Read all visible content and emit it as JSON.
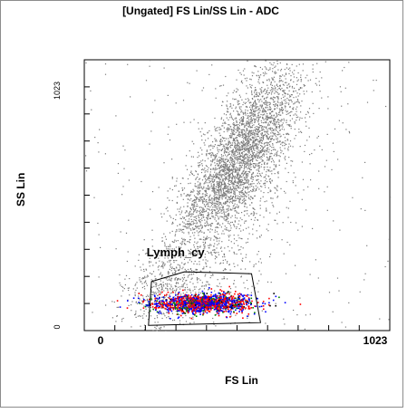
{
  "chart_data": {
    "type": "scatter",
    "title": "[Ungated] FS Lin/SS Lin - ADC",
    "xlabel": "FS Lin",
    "ylabel": "SS Lin",
    "xlim": [
      0,
      1023
    ],
    "ylim": [
      0,
      1023
    ],
    "x_ticks": [
      "0",
      "1023"
    ],
    "y_ticks": [
      "0",
      "1023"
    ],
    "grid": false,
    "series": [
      {
        "population": "main",
        "color": "#7a7a7a",
        "clusters": [
          {
            "center": [
              500,
              620
            ],
            "spread": [
              95,
              150
            ],
            "count": 2600,
            "corr": 0.75
          },
          {
            "center": [
              500,
              480
            ],
            "spread": [
              120,
              230
            ],
            "count": 900,
            "corr": 0.6
          },
          {
            "center": [
              270,
              150
            ],
            "spread": [
              70,
              80
            ],
            "count": 500,
            "corr": 0.3
          },
          {
            "center": [
              600,
              850
            ],
            "spread": [
              80,
              90
            ],
            "count": 500,
            "corr": 0.3
          }
        ],
        "background": {
          "count": 260
        }
      },
      {
        "population": "gated",
        "colors": [
          "#ff0000",
          "#0000ff",
          "#008000",
          "#000000"
        ],
        "color_weights": [
          0.45,
          0.38,
          0.12,
          0.05
        ],
        "clusters": [
          {
            "center": [
              400,
              105
            ],
            "spread": [
              85,
              18
            ],
            "count": 1400,
            "corr": 0.1
          }
        ]
      }
    ],
    "gates": [
      {
        "name": "Lymph_cy",
        "color": "#000000",
        "polygon": [
          [
            225,
            185
          ],
          [
            335,
            222
          ],
          [
            560,
            215
          ],
          [
            590,
            30
          ],
          [
            215,
            20
          ]
        ]
      }
    ]
  }
}
